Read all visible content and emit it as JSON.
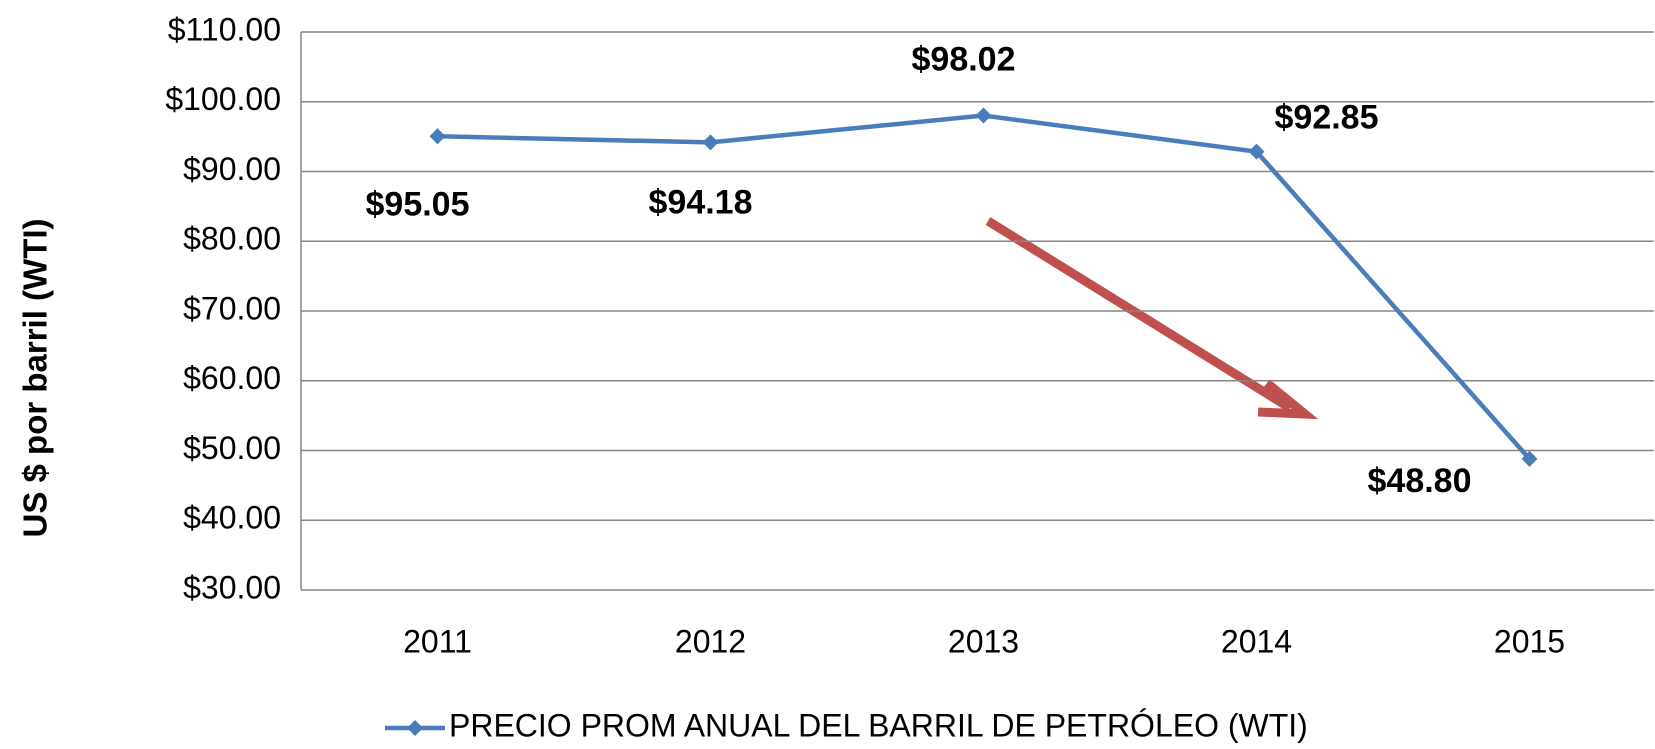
{
  "chart_data": {
    "type": "line",
    "y_label": "US $ por barril (WTI)",
    "categories": [
      "2011",
      "2012",
      "2013",
      "2014",
      "2015"
    ],
    "series": [
      {
        "name": "PRECIO PROM ANUAL DEL BARRIL DE PETRÓLEO (WTI)",
        "color": "#4a7ebb",
        "values": [
          95.05,
          94.18,
          98.02,
          92.85,
          48.8
        ],
        "value_labels": [
          "$95.05",
          "$94.18",
          "$98.02",
          "$92.85",
          "$48.80"
        ]
      }
    ],
    "ylim": [
      30,
      110
    ],
    "yticks": [
      {
        "value": 30,
        "label": "$30.00"
      },
      {
        "value": 40,
        "label": "$40.00"
      },
      {
        "value": 50,
        "label": "$50.00"
      },
      {
        "value": 60,
        "label": "$60.00"
      },
      {
        "value": 70,
        "label": "$70.00"
      },
      {
        "value": 80,
        "label": "$80.00"
      },
      {
        "value": 90,
        "label": "$90.00"
      },
      {
        "value": 100,
        "label": "$100.00"
      },
      {
        "value": 110,
        "label": "$110.00"
      }
    ],
    "grid": true,
    "legend": "bottom"
  }
}
